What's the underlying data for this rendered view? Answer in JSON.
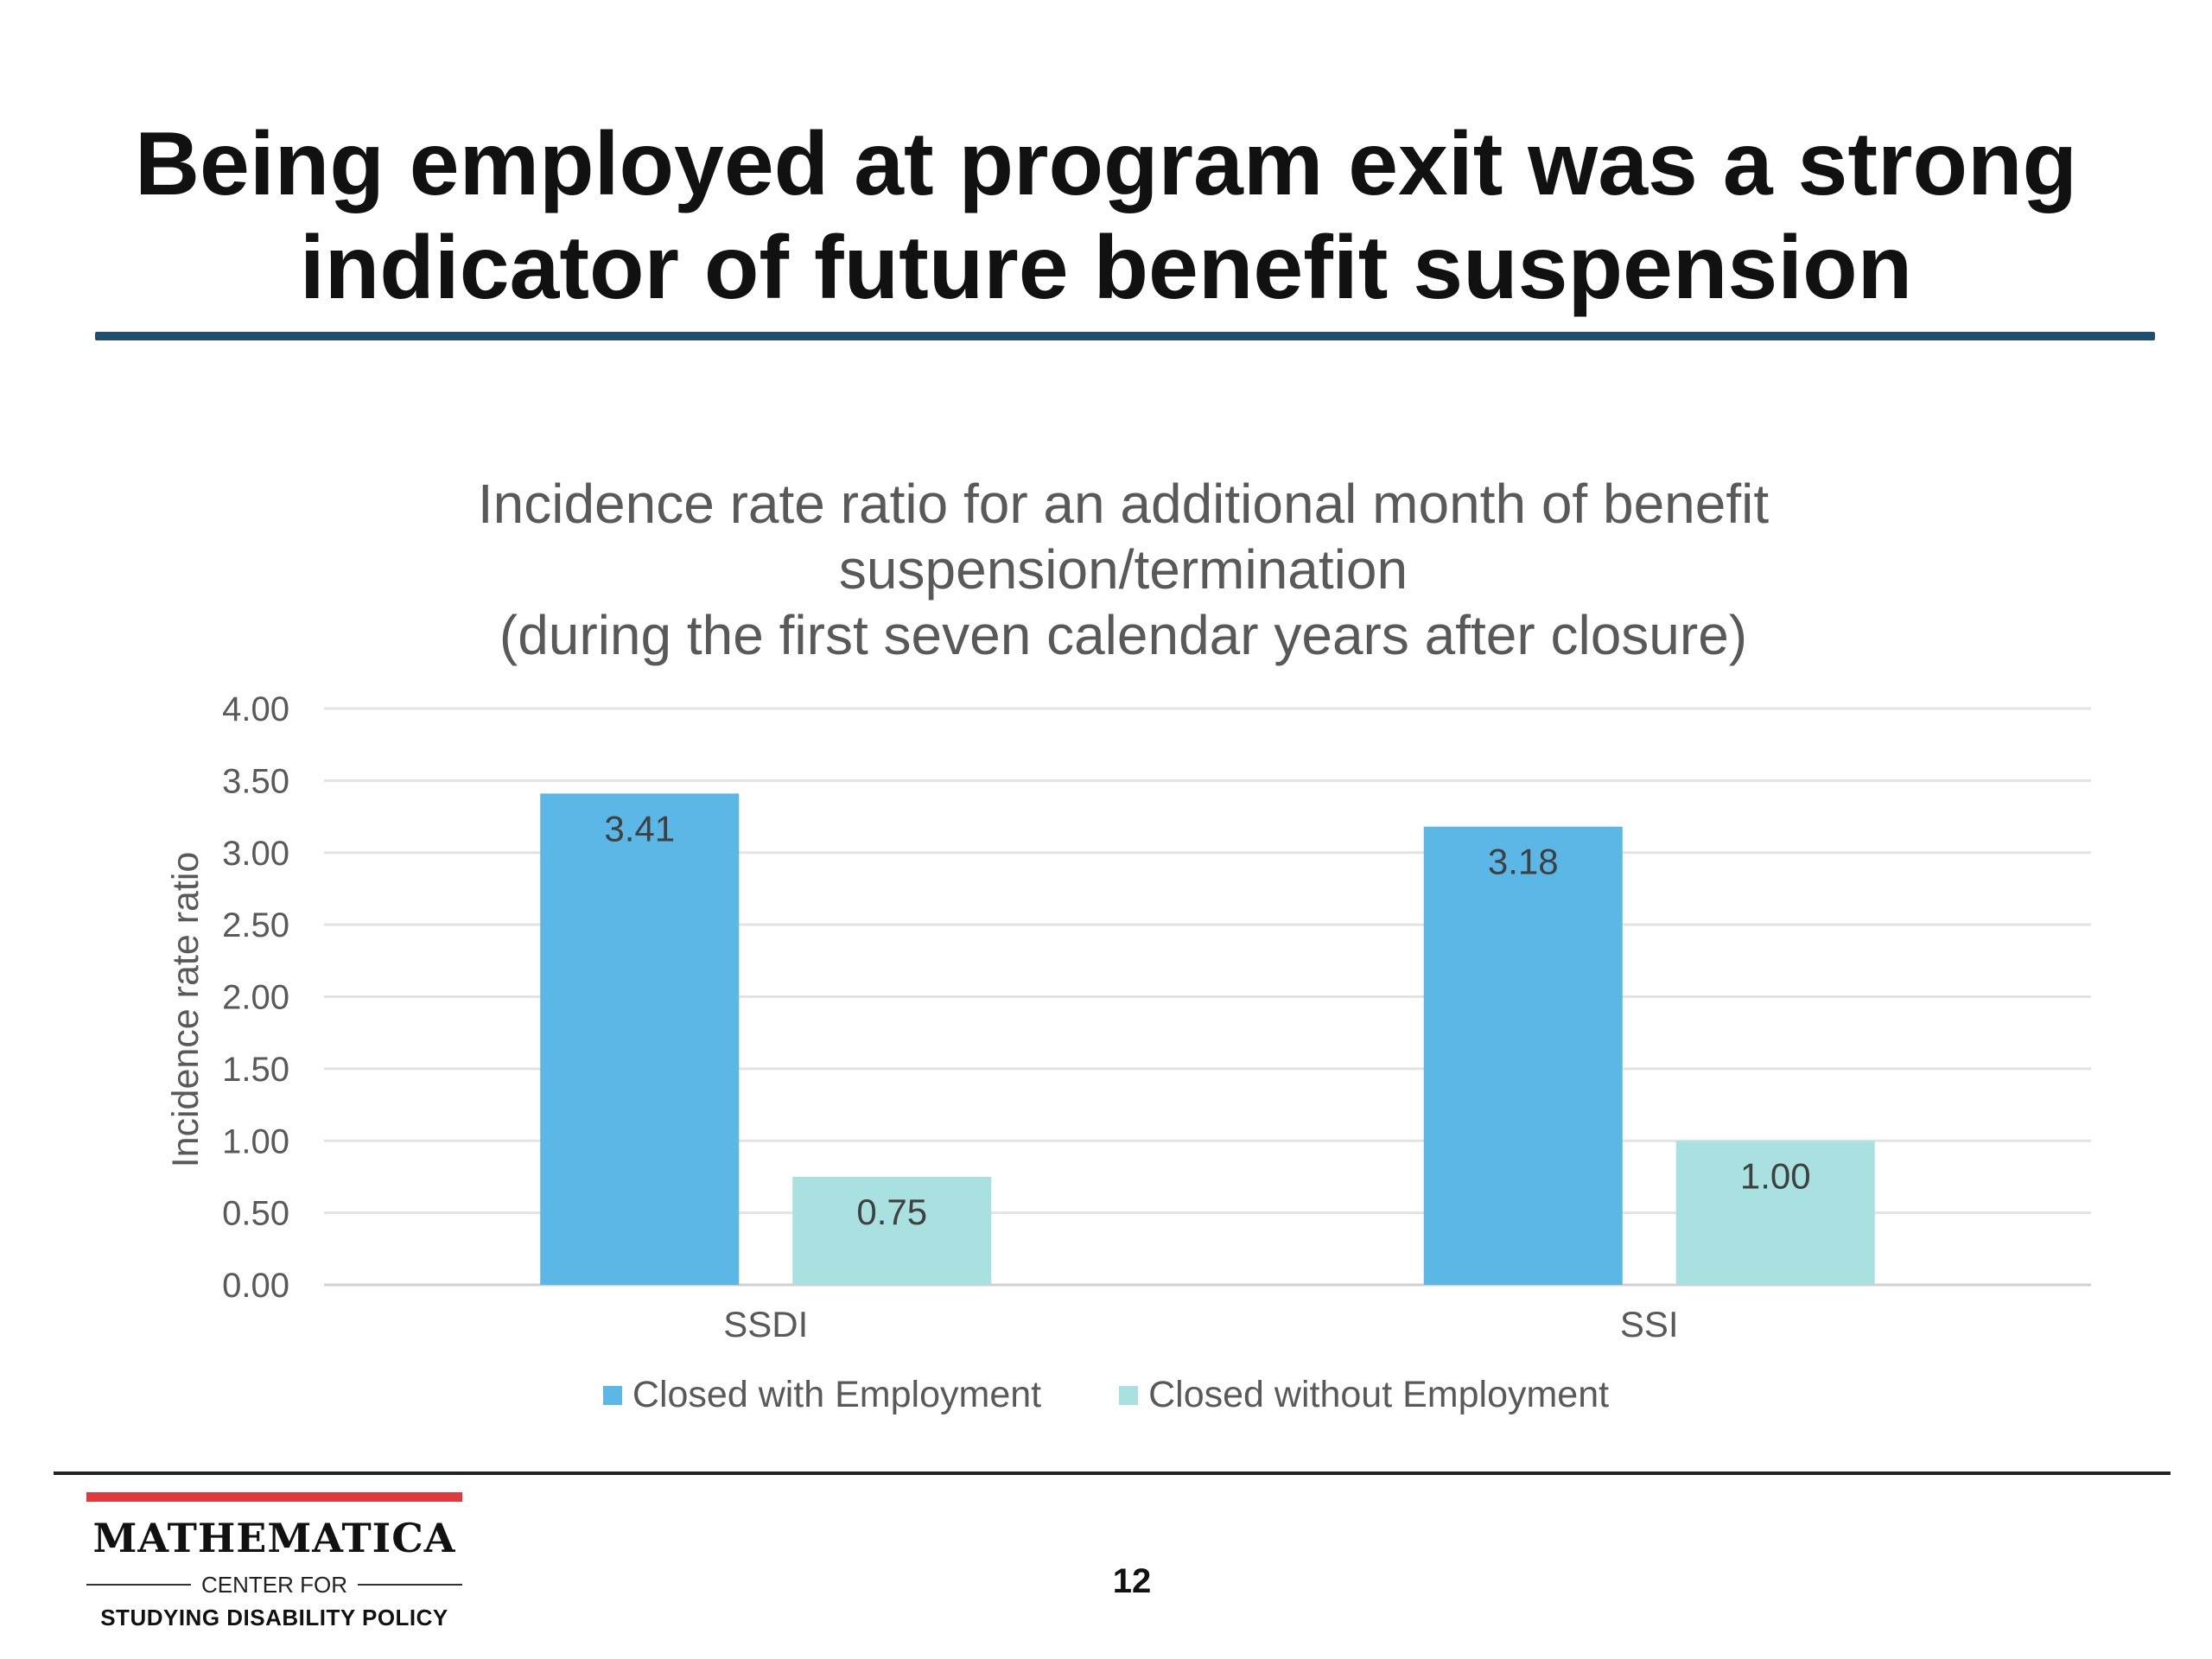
{
  "slide": {
    "title_line1": "Being employed at program exit was a strong",
    "title_line2": "indicator of future benefit suspension",
    "page_number": "12"
  },
  "logo": {
    "name": "MATHEMATICA",
    "sub1": "CENTER FOR",
    "sub2": "STUDYING DISABILITY POLICY"
  },
  "chart_data": {
    "type": "bar",
    "title_lines": [
      "Incidence rate ratio for an additional month of benefit",
      "suspension/termination",
      "(during the first seven calendar years after closure)"
    ],
    "xlabel": "",
    "ylabel": "Incidence rate ratio",
    "ylim": [
      0,
      4
    ],
    "yticks": [
      "0.00",
      "0.50",
      "1.00",
      "1.50",
      "2.00",
      "2.50",
      "3.00",
      "3.50",
      "4.00"
    ],
    "categories": [
      "SSDI",
      "SSI"
    ],
    "series": [
      {
        "name": "Closed with Employment",
        "values": [
          3.41,
          3.18
        ],
        "labels": [
          "3.41",
          "3.18"
        ],
        "color": "#5bb7e6"
      },
      {
        "name": "Closed without Employment",
        "values": [
          0.75,
          1.0
        ],
        "labels": [
          "0.75",
          "1.00"
        ],
        "color": "#a9e0e0"
      }
    ],
    "grid": true,
    "legend_position": "bottom"
  }
}
